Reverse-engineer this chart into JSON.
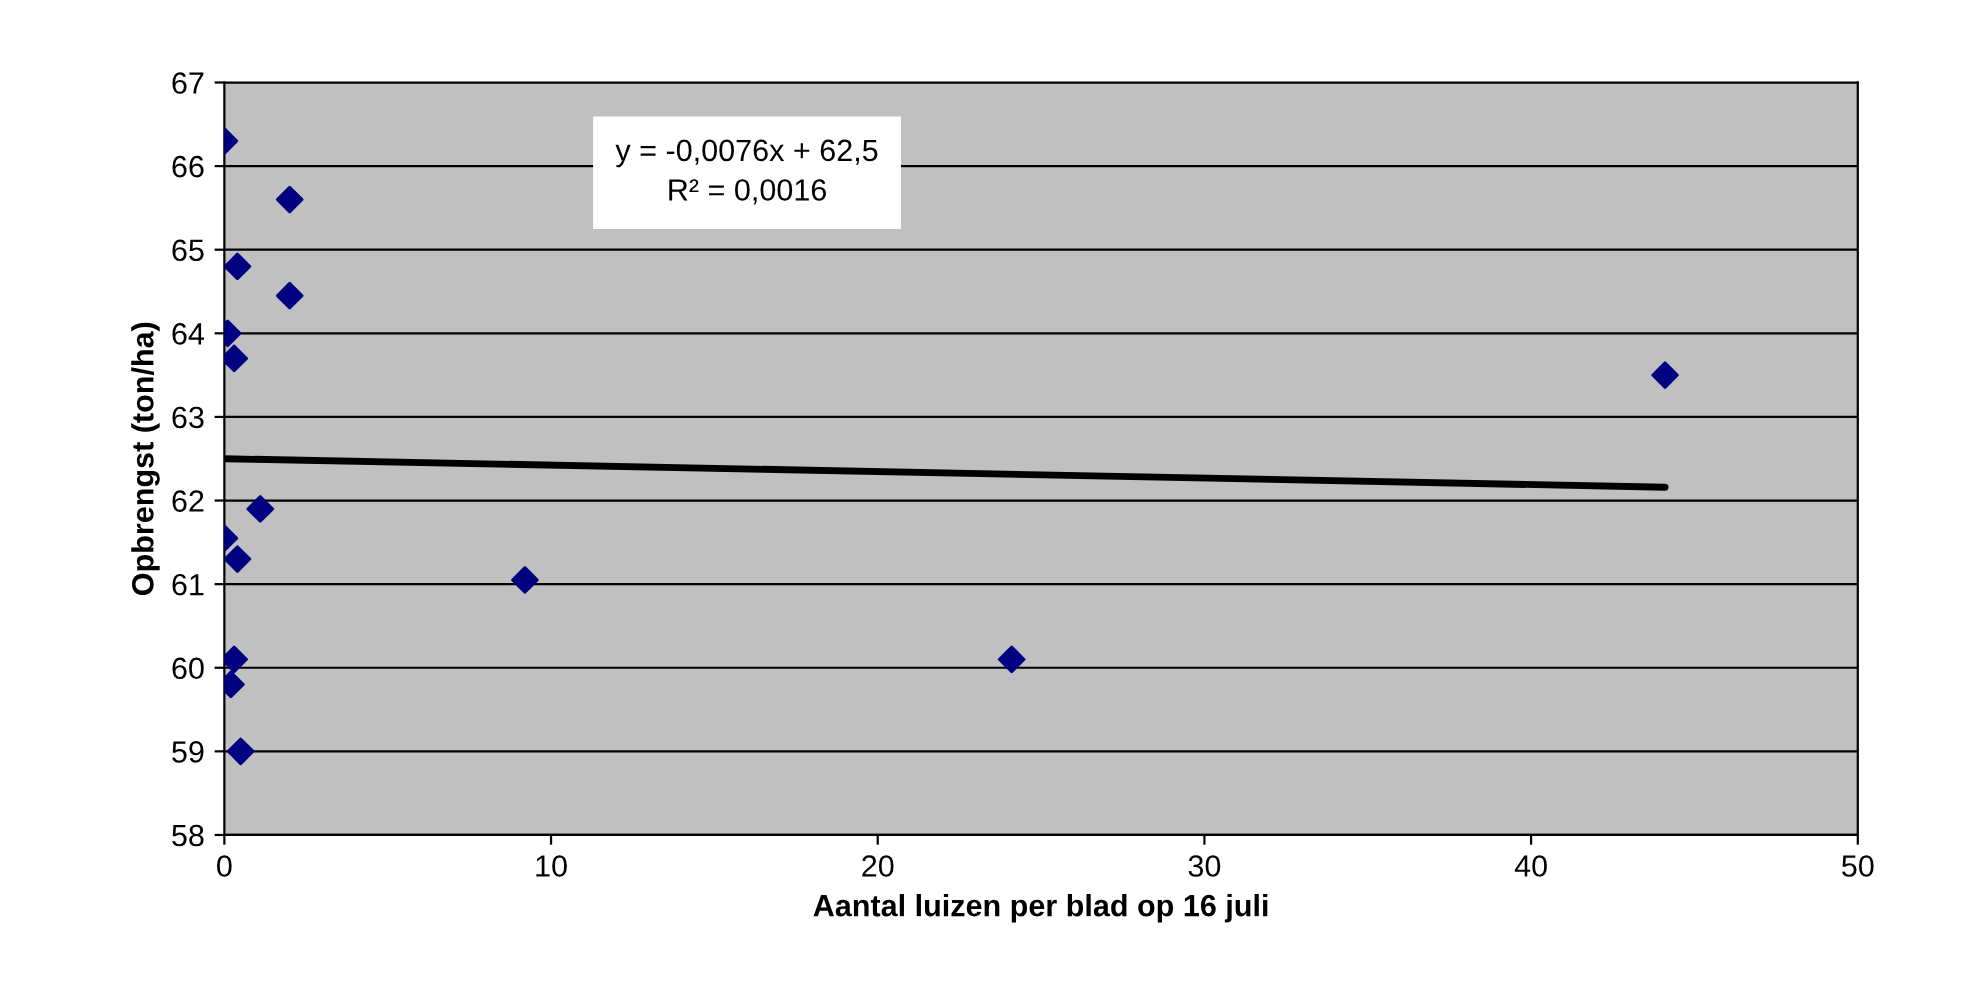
{
  "chart_data": {
    "type": "scatter",
    "xlabel": "Aantal luizen per blad op 16 juli",
    "ylabel": "Opbrengst (ton/ha)",
    "annotations": [
      "y = -0,0076x + 62,5\nR² = 0,0016"
    ],
    "xlim": [
      0,
      50
    ],
    "xticks": [
      0,
      10,
      20,
      30,
      40,
      50
    ],
    "ylim": [
      58,
      67
    ],
    "yticks": [
      58,
      59,
      60,
      61,
      62,
      63,
      64,
      65,
      66,
      67
    ],
    "grid": "y",
    "marker": "diamond",
    "series": [
      {
        "color": "#000080",
        "x": [
          0,
          2.0,
          0.4,
          2.0,
          0.1,
          0.3,
          44.1,
          1.1,
          0,
          0.4,
          9.2,
          0.3,
          24.1,
          0.2,
          0.5
        ],
        "values": [
          66.3,
          65.6,
          64.8,
          64.45,
          64.0,
          63.7,
          63.5,
          61.9,
          61.55,
          61.3,
          61.05,
          60.1,
          60.1,
          59.8,
          59.0
        ]
      },
      {
        "type": "line",
        "color": "#000000",
        "line_style": "solid",
        "marker": "none",
        "x": [
          0,
          44.1
        ],
        "values": [
          62.5,
          62.16
        ]
      }
    ]
  }
}
